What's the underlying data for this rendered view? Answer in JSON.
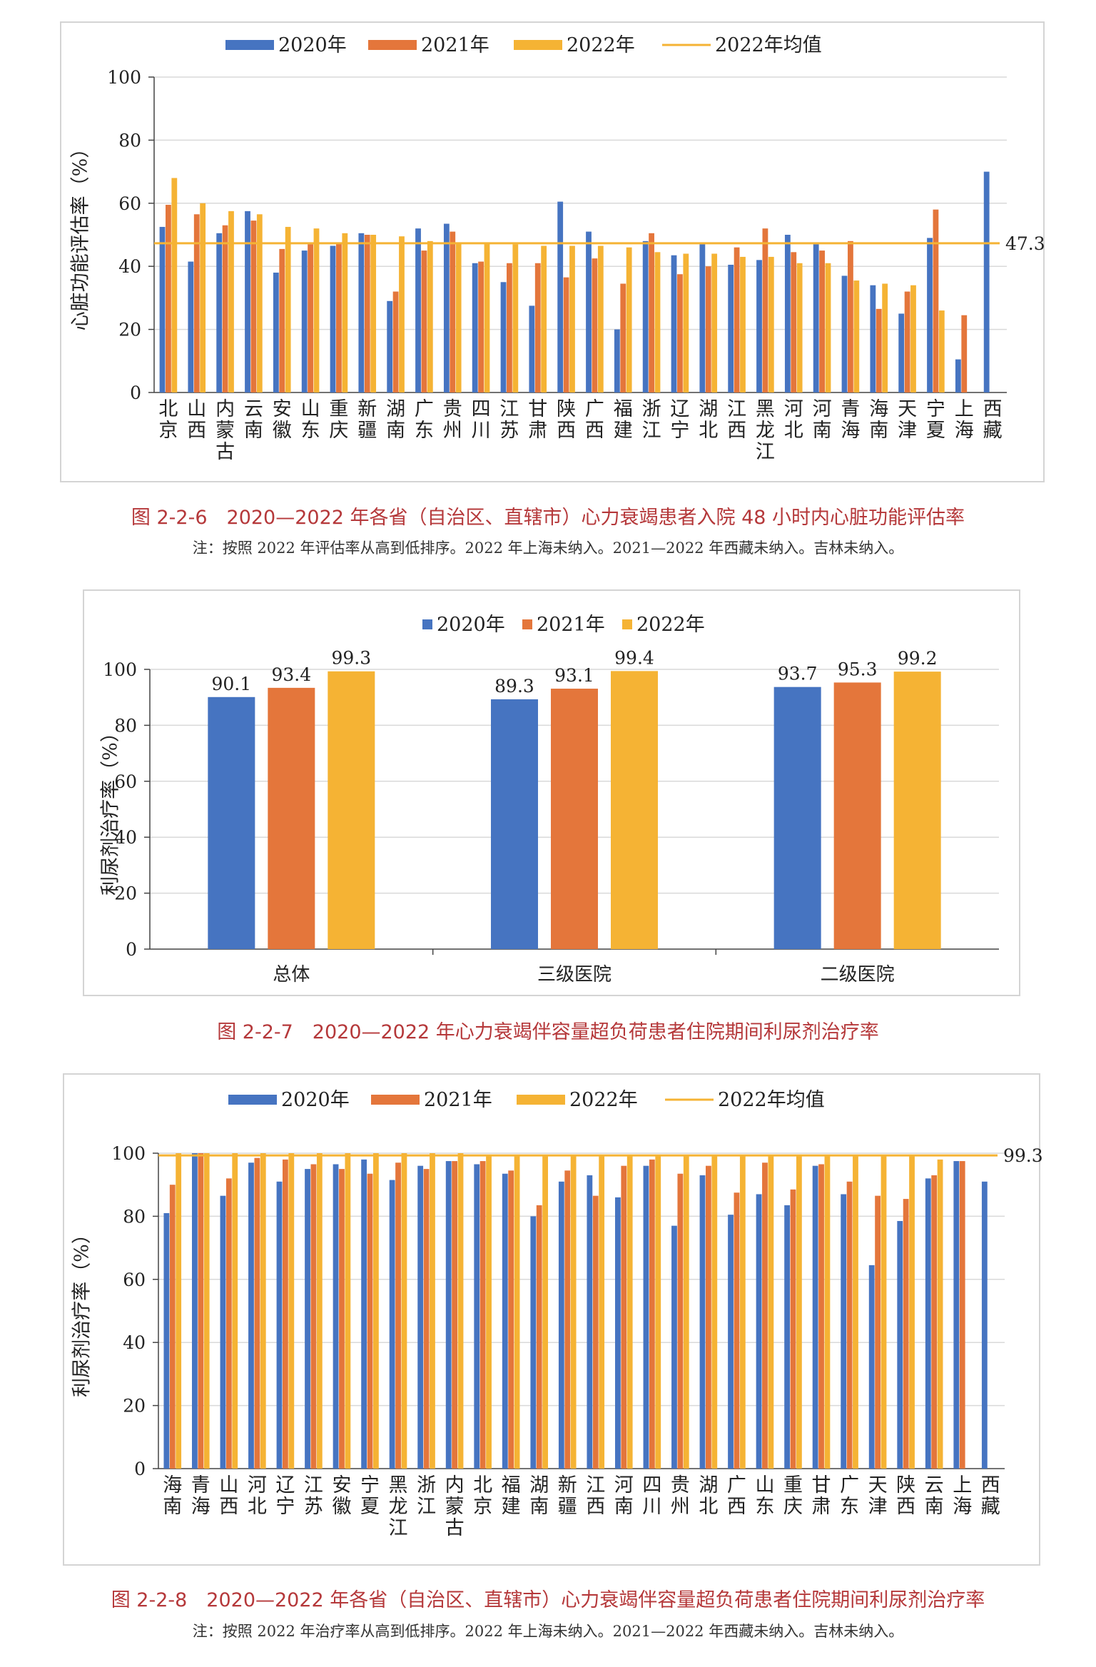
{
  "colors": {
    "c2020": "#4674c1",
    "c2021": "#e4763b",
    "c2022": "#f5b334",
    "avg": "#f5b334"
  },
  "chart_data": [
    {
      "type": "bar",
      "legend": [
        "2020年",
        "2021年",
        "2022年",
        "2022年均值"
      ],
      "ylabel": "心脏功能评估率（%）",
      "ylim": [
        0,
        100
      ],
      "yticks": [
        0,
        20,
        40,
        60,
        80,
        100
      ],
      "categories": [
        "北京",
        "山西",
        "内蒙古",
        "云南",
        "安徽",
        "山东",
        "重庆",
        "新疆",
        "湖南",
        "广东",
        "贵州",
        "四川",
        "江苏",
        "甘肃",
        "陕西",
        "广西",
        "福建",
        "浙江",
        "辽宁",
        "湖北",
        "江西",
        "黑龙江",
        "河北",
        "河南",
        "青海",
        "海南",
        "天津",
        "宁夏",
        "上海",
        "西藏"
      ],
      "series": [
        {
          "name": "2020年",
          "values": [
            52.5,
            41.5,
            50.5,
            57.5,
            38.0,
            45.0,
            46.5,
            50.5,
            29.0,
            52.0,
            53.5,
            41.0,
            35.0,
            27.5,
            60.5,
            51.0,
            20.0,
            48.0,
            43.5,
            47.0,
            40.5,
            42.0,
            50.0,
            47.0,
            37.0,
            34.0,
            25.0,
            49.0,
            10.5,
            70.0
          ]
        },
        {
          "name": "2021年",
          "values": [
            59.5,
            56.5,
            53.0,
            54.5,
            45.5,
            47.0,
            47.5,
            50.0,
            32.0,
            45.0,
            51.0,
            41.5,
            41.0,
            41.0,
            36.5,
            42.5,
            34.5,
            50.5,
            37.5,
            40.0,
            46.0,
            52.0,
            44.5,
            45.0,
            48.0,
            26.5,
            32.0,
            58.0,
            24.5,
            null
          ]
        },
        {
          "name": "2022年",
          "values": [
            68.0,
            60.0,
            57.5,
            56.5,
            52.5,
            52.0,
            50.5,
            50.0,
            49.5,
            48.0,
            47.5,
            47.5,
            47.0,
            46.5,
            46.5,
            46.5,
            46.0,
            44.5,
            44.0,
            44.0,
            43.0,
            43.0,
            41.0,
            41.0,
            35.5,
            34.5,
            34.0,
            26.0,
            null,
            null
          ]
        }
      ],
      "avg_line": {
        "name": "2022年均值",
        "value": 47.3,
        "label": "47.3"
      }
    },
    {
      "type": "bar",
      "legend": [
        "2020年",
        "2021年",
        "2022年"
      ],
      "ylabel": "利尿剂治疗率（%）",
      "ylim": [
        0,
        100
      ],
      "yticks": [
        0,
        20,
        40,
        60,
        80,
        100
      ],
      "categories": [
        "总体",
        "三级医院",
        "二级医院"
      ],
      "series": [
        {
          "name": "2020年",
          "values": [
            90.1,
            89.3,
            93.7
          ]
        },
        {
          "name": "2021年",
          "values": [
            93.4,
            93.1,
            95.3
          ]
        },
        {
          "name": "2022年",
          "values": [
            99.3,
            99.4,
            99.2
          ]
        }
      ],
      "data_labels": [
        [
          "90.1",
          "93.4",
          "99.3"
        ],
        [
          "89.3",
          "93.1",
          "99.4"
        ],
        [
          "93.7",
          "95.3",
          "99.2"
        ]
      ]
    },
    {
      "type": "bar",
      "legend": [
        "2020年",
        "2021年",
        "2022年",
        "2022年均值"
      ],
      "ylabel": "利尿剂治疗率（%）",
      "ylim": [
        0,
        100
      ],
      "yticks": [
        0,
        20,
        40,
        60,
        80,
        100
      ],
      "categories": [
        "海南",
        "青海",
        "山西",
        "河北",
        "辽宁",
        "江苏",
        "安徽",
        "宁夏",
        "黑龙江",
        "浙江",
        "内蒙古",
        "北京",
        "福建",
        "湖南",
        "新疆",
        "江西",
        "河南",
        "四川",
        "贵州",
        "湖北",
        "广西",
        "山东",
        "重庆",
        "甘肃",
        "广东",
        "天津",
        "陕西",
        "云南",
        "上海",
        "西藏"
      ],
      "series": [
        {
          "name": "2020年",
          "values": [
            81,
            100,
            86.5,
            97,
            91,
            95,
            96.5,
            98,
            91.5,
            96,
            97.5,
            96.5,
            93.5,
            80,
            91,
            93,
            86,
            96,
            77,
            93,
            80.5,
            87,
            83.5,
            96,
            87,
            64.5,
            78.5,
            92,
            97.5,
            91
          ]
        },
        {
          "name": "2021年",
          "values": [
            90,
            100,
            92,
            98.5,
            98,
            96.5,
            95,
            93.5,
            97,
            95,
            97.5,
            97.5,
            94.5,
            83.5,
            94.5,
            86.5,
            96,
            98,
            93.5,
            96,
            87.5,
            97,
            88.5,
            96.5,
            91,
            86.5,
            85.5,
            93,
            97.5,
            null
          ]
        },
        {
          "name": "2022年",
          "values": [
            100,
            100,
            100,
            100,
            100,
            100,
            100,
            100,
            100,
            100,
            100,
            99.5,
            99.5,
            99.5,
            99.5,
            99.5,
            99.5,
            99.5,
            99.5,
            99.5,
            99.5,
            99.5,
            99.5,
            99.5,
            99.5,
            99,
            99,
            98,
            null,
            null
          ]
        }
      ],
      "avg_line": {
        "name": "2022年均值",
        "value": 99.3,
        "label": "99.3"
      }
    }
  ],
  "captions": {
    "fig6": "图 2-2-6　2020—2022 年各省（自治区、直辖市）心力衰竭患者入院 48 小时内心脏功能评估率",
    "fig6_note": "注：按照 2022 年评估率从高到低排序。2022 年上海未纳入。2021—2022 年西藏未纳入。吉林未纳入。",
    "fig7": "图 2-2-7　2020—2022 年心力衰竭伴容量超负荷患者住院期间利尿剂治疗率",
    "fig8": "图 2-2-8　2020—2022 年各省（自治区、直辖市）心力衰竭伴容量超负荷患者住院期间利尿剂治疗率",
    "fig8_note": "注：按照 2022 年治疗率从高到低排序。2022 年上海未纳入。2021—2022 年西藏未纳入。吉林未纳入。"
  }
}
